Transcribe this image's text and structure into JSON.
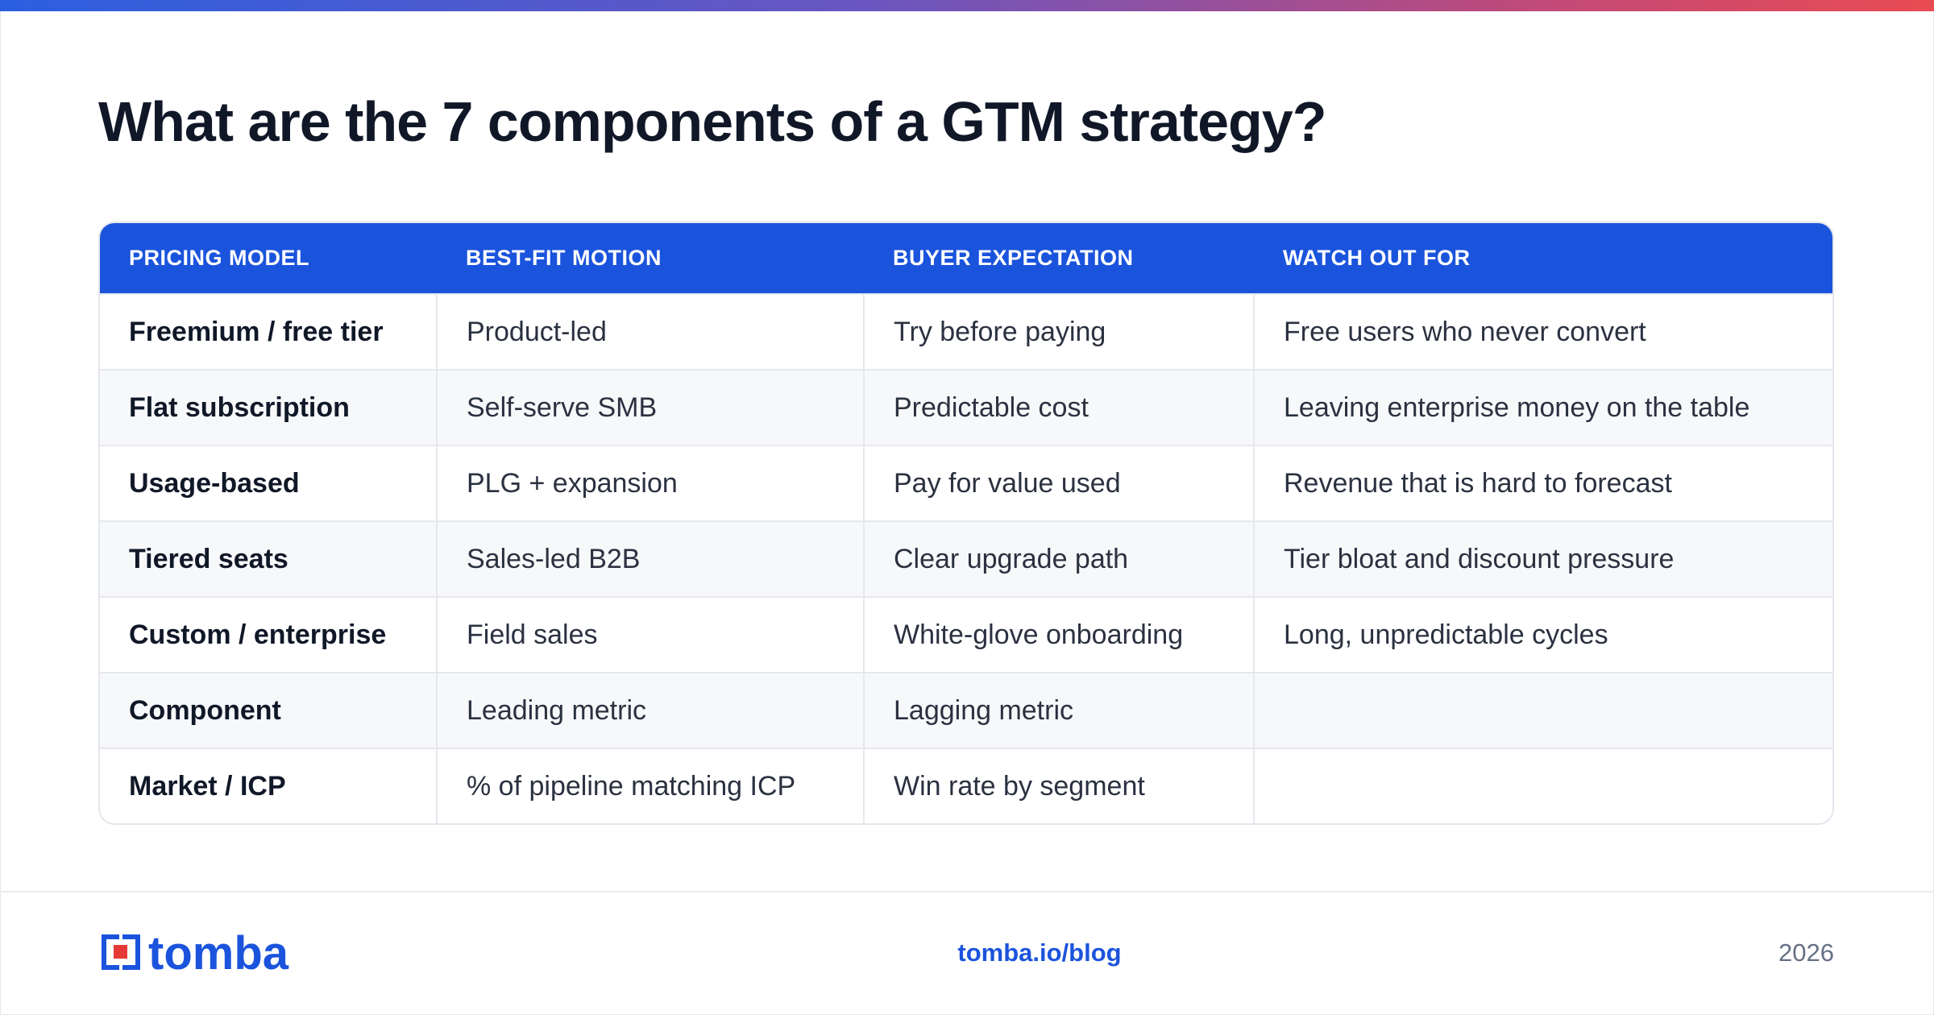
{
  "page": {
    "title": "What are the 7 components of a GTM strategy?",
    "accent_color": "#1b54dc",
    "gradient_colors": [
      "#2b5fe0",
      "#6a56c0",
      "#c24a78",
      "#e94b52"
    ]
  },
  "table": {
    "headers": [
      "PRICING MODEL",
      "BEST-FIT MOTION",
      "BUYER EXPECTATION",
      "WATCH OUT FOR"
    ],
    "rows": [
      [
        "Freemium / free tier",
        "Product-led",
        "Try before paying",
        "Free users who never convert"
      ],
      [
        "Flat subscription",
        "Self-serve SMB",
        "Predictable cost",
        "Leaving enterprise money on the table"
      ],
      [
        "Usage-based",
        "PLG + expansion",
        "Pay for value used",
        "Revenue that is hard to forecast"
      ],
      [
        "Tiered seats",
        "Sales-led B2B",
        "Clear upgrade path",
        "Tier bloat and discount pressure"
      ],
      [
        "Custom / enterprise",
        "Field sales",
        "White-glove onboarding",
        "Long, unpredictable cycles"
      ],
      [
        "Component",
        "Leading metric",
        "Lagging metric",
        ""
      ],
      [
        "Market / ICP",
        "% of pipeline matching ICP",
        "Win rate by segment",
        ""
      ]
    ]
  },
  "footer": {
    "logo_text": "tomba",
    "logo_icon": "tomba-logo-icon",
    "link": "tomba.io/blog",
    "year": "2026"
  }
}
